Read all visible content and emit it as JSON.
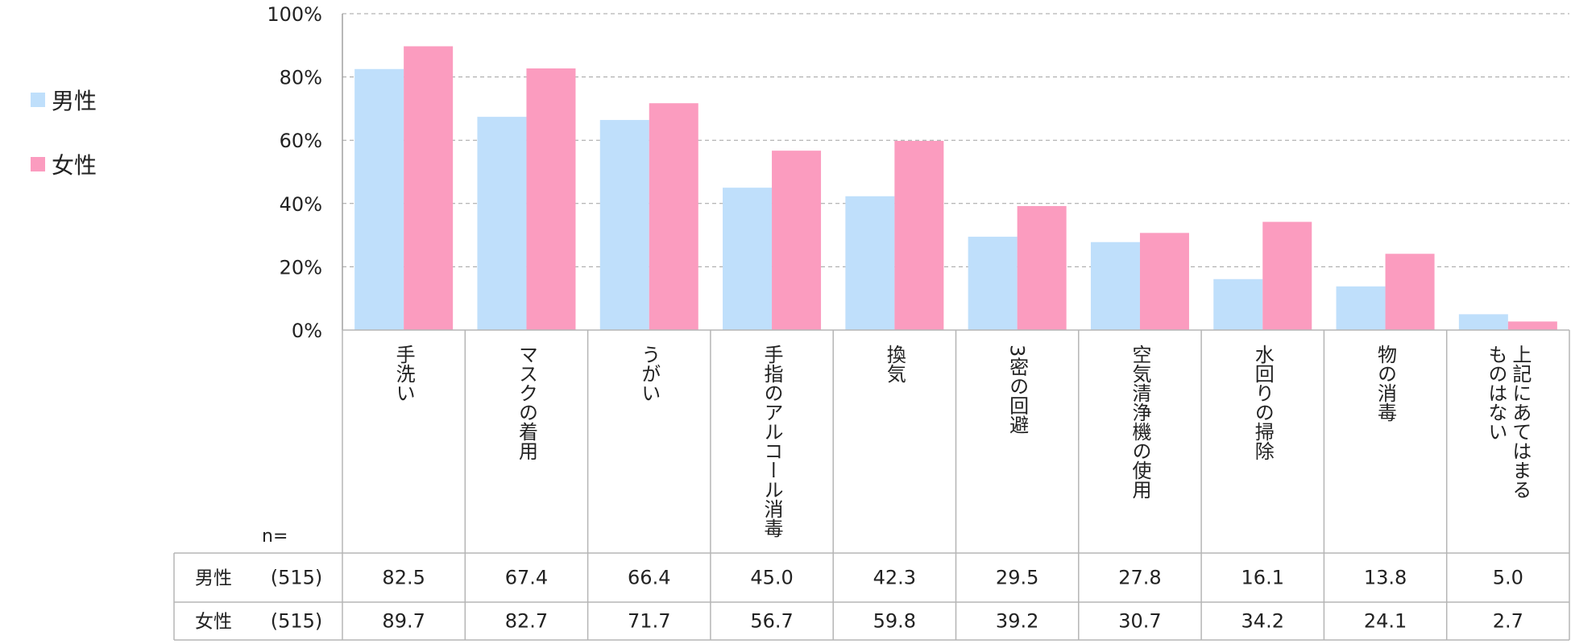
{
  "colors": {
    "male": "#bfdffb",
    "female": "#fb9cbf"
  },
  "chart_data": {
    "type": "bar",
    "categories": [
      "手洗い",
      "マスクの着用",
      "うがい",
      "手指のアルコール消毒",
      "換気",
      "3密の回避",
      "空気清浄機の使用",
      "水回りの掃除",
      "物の消毒",
      "上記にあてはまるものはない"
    ],
    "category_lines": [
      [
        "手洗い"
      ],
      [
        "マスクの着用"
      ],
      [
        "うがい"
      ],
      [
        "手指のアルコール消毒"
      ],
      [
        "換気"
      ],
      [
        "3密の回避"
      ],
      [
        "空気清浄機の使用"
      ],
      [
        "水回りの掃除"
      ],
      [
        "物の消毒"
      ],
      [
        "上記にあてはまる",
        "ものはない"
      ]
    ],
    "series": [
      {
        "name": "男性",
        "n": "(515)",
        "values": [
          82.5,
          67.4,
          66.4,
          45.0,
          42.3,
          29.5,
          27.8,
          16.1,
          13.8,
          5.0
        ]
      },
      {
        "name": "女性",
        "n": "(515)",
        "values": [
          89.7,
          82.7,
          71.7,
          56.7,
          59.8,
          39.2,
          30.7,
          34.2,
          24.1,
          2.7
        ]
      }
    ],
    "ylim": [
      0,
      100
    ],
    "yticks": [
      0,
      20,
      40,
      60,
      80,
      100
    ],
    "ytick_labels": [
      "0%",
      "20%",
      "40%",
      "60%",
      "80%",
      "100%"
    ],
    "grid": true,
    "legend_position": "left",
    "n_label": "n=",
    "table_decimals": 1
  }
}
